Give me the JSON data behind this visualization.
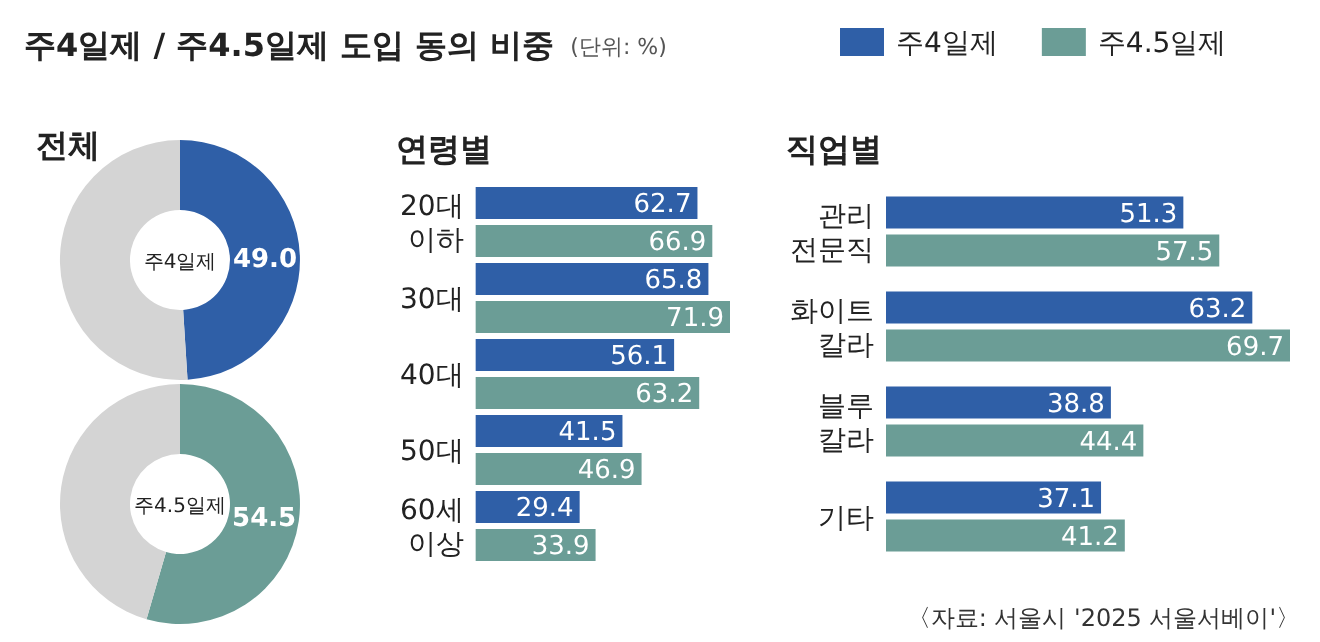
{
  "chart_data": [
    {
      "type": "other",
      "title": "주4일제 / 주4.5일제 도입 동의 비중",
      "subtitle": "(단위: %)",
      "annotations": [
        "〈자료: 서울시 '2025 서울서베이'〉"
      ]
    },
    {
      "type": "donut",
      "title": "전체",
      "categories": [
        "주4일제",
        null
      ],
      "values": [
        49.0,
        51.0
      ],
      "colors": [
        "#2f5fa7",
        "#d4d4d4"
      ],
      "value_labels": [
        "49.0",
        null
      ]
    },
    {
      "type": "donut",
      "categories": [
        "주4.5일제",
        null
      ],
      "values": [
        54.5,
        45.5
      ],
      "colors": [
        "#6b9d96",
        "#d4d4d4"
      ],
      "value_labels": [
        "54.5",
        null
      ]
    },
    {
      "type": "bar",
      "orientation": "horizontal",
      "title": "연령별",
      "categories": [
        "20대 이하",
        "30대",
        "40대",
        "50대",
        "60세 이상"
      ],
      "data_labels": true,
      "legend": "top",
      "series": [
        {
          "name": "주4일제",
          "color": "#2f5fa7",
          "values": [
            62.7,
            65.8,
            56.1,
            41.5,
            29.4
          ]
        },
        {
          "name": "주4.5일제",
          "color": "#6b9d96",
          "values": [
            66.9,
            71.9,
            63.2,
            46.9,
            33.9
          ]
        }
      ]
    },
    {
      "type": "bar",
      "orientation": "horizontal",
      "title": "직업별",
      "categories": [
        "관리 전문직",
        "화이트 칼라",
        "블루 칼라",
        "기타"
      ],
      "data_labels": true,
      "series": [
        {
          "color": "#2f5fa7",
          "values": [
            51.3,
            63.2,
            38.8,
            37.1
          ]
        },
        {
          "color": "#6b9d96",
          "values": [
            57.5,
            69.7,
            44.4,
            41.2
          ]
        }
      ]
    }
  ]
}
